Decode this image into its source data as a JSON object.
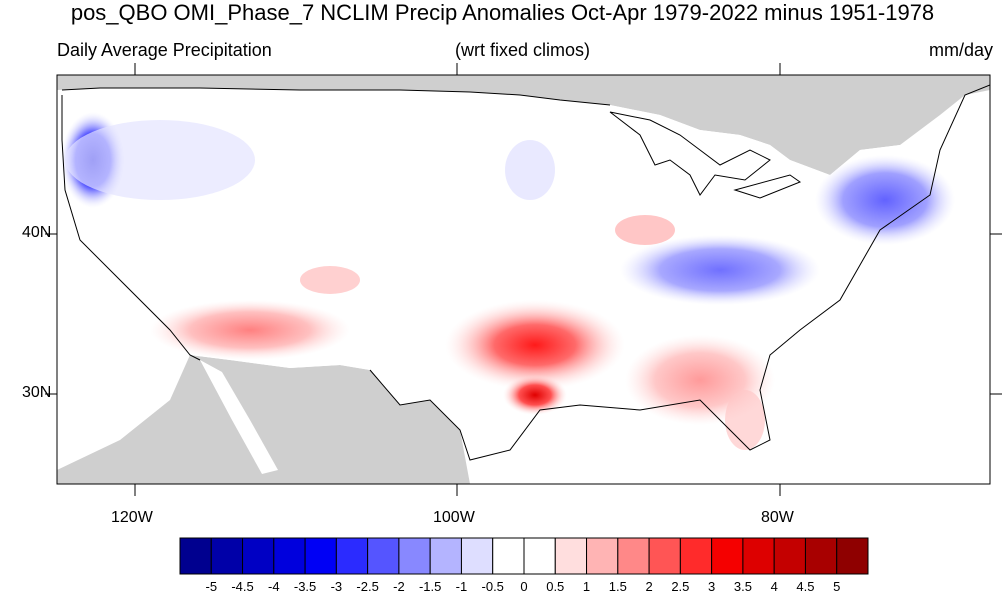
{
  "title": "pos_QBO OMI_Phase_7 NCLIM Precip Anomalies Oct-Apr 1979-2022 minus 1951-1978",
  "left_subtitle": "Daily Average Precipitation",
  "center_subtitle": "(wrt fixed climos)",
  "right_subtitle": "mm/day",
  "lat_labels": [
    "40N",
    "30N"
  ],
  "lon_labels": [
    "120W",
    "100W",
    "80W"
  ],
  "colorbar": {
    "labels": [
      "-5",
      "-4.5",
      "-4",
      "-3.5",
      "-3",
      "-2.5",
      "-2",
      "-1.5",
      "-1",
      "-0.5",
      "0",
      "0.5",
      "1",
      "1.5",
      "2",
      "2.5",
      "3",
      "3.5",
      "4",
      "4.5",
      "5"
    ],
    "colors": [
      "#00008f",
      "#0000a8",
      "#0000c4",
      "#0000dd",
      "#0000f5",
      "#2b2bff",
      "#5555ff",
      "#8888ff",
      "#b4b4ff",
      "#dedeff",
      "#ffffff",
      "#ffffff",
      "#ffdede",
      "#ffb4b4",
      "#ff8888",
      "#ff5555",
      "#ff2b2b",
      "#f50000",
      "#dd0000",
      "#c40000",
      "#a80000",
      "#8f0000"
    ]
  }
}
